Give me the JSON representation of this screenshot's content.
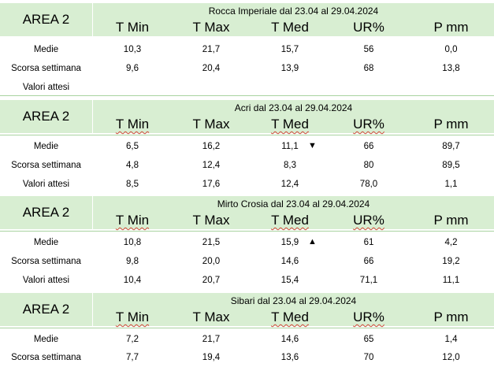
{
  "area_label": "AREA 2",
  "columns": [
    "T Min",
    "T Max",
    "T Med",
    "UR%",
    "P mm"
  ],
  "tables": [
    {
      "station": "Rocca Imperiale  dal 23.04 al 29.04.2024",
      "rows": [
        {
          "label": "Medie",
          "values": [
            "10,3",
            "21,7",
            "15,7",
            "56",
            "0,0"
          ]
        },
        {
          "label": "Scorsa settimana",
          "values": [
            "9,6",
            "20,4",
            "13,9",
            "68",
            "13,8"
          ]
        },
        {
          "label": "Valori attesi",
          "values": [
            "",
            "",
            "",
            "",
            ""
          ]
        }
      ]
    },
    {
      "station": "Acri dal 23.04 al 29.04.2024",
      "trend": "▼",
      "rows": [
        {
          "label": "Medie",
          "values": [
            "6,5",
            "16,2",
            "11,1",
            "66",
            "89,7"
          ]
        },
        {
          "label": "Scorsa settimana",
          "values": [
            "4,8",
            "12,4",
            "8,3",
            "80",
            "89,5"
          ]
        },
        {
          "label": "Valori attesi",
          "values": [
            "8,5",
            "17,6",
            "12,4",
            "78,0",
            "1,1"
          ]
        }
      ]
    },
    {
      "station": "Mirto Crosia dal 23.04 al 29.04.2024",
      "trend": "▲",
      "rows": [
        {
          "label": "Medie",
          "values": [
            "10,8",
            "21,5",
            "15,9",
            "61",
            "4,2"
          ]
        },
        {
          "label": "Scorsa settimana",
          "values": [
            "9,8",
            "20,0",
            "14,6",
            "66",
            "19,2"
          ]
        },
        {
          "label": "Valori attesi",
          "values": [
            "10,4",
            "20,7",
            "15,4",
            "71,1",
            "11,1"
          ]
        }
      ]
    },
    {
      "station": "Sibari dal 23.04 al 29.04.2024",
      "rows": [
        {
          "label": "Medie",
          "values": [
            "7,2",
            "21,7",
            "14,6",
            "65",
            "1,4"
          ]
        },
        {
          "label": "Scorsa settimana",
          "values": [
            "7,7",
            "19,4",
            "13,6",
            "70",
            "12,0"
          ]
        }
      ]
    }
  ]
}
